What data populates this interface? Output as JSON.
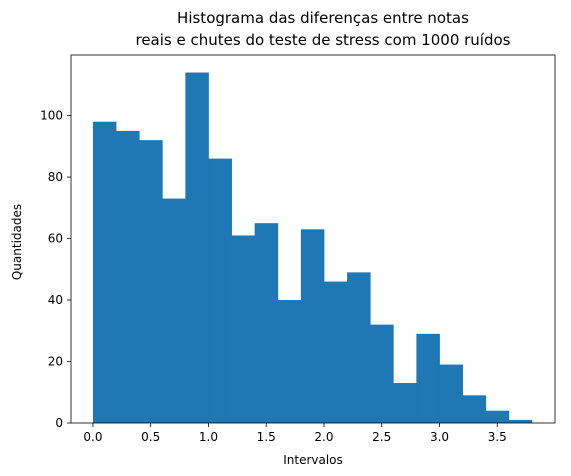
{
  "chart_data": {
    "type": "bar",
    "title_lines": [
      "Histograma das diferenças entre notas",
      "reais e chutes  do teste de stress com 1000 ruídos"
    ],
    "xlabel": "Intervalos",
    "ylabel": "Quantidades",
    "bar_color": "#1f77b4",
    "xlim": [
      -0.19,
      4.0
    ],
    "ylim": [
      0,
      119.7
    ],
    "x_ticks": [
      "0.0",
      "0.5",
      "1.0",
      "1.5",
      "2.0",
      "2.5",
      "3.0",
      "3.5"
    ],
    "y_ticks": [
      "0",
      "20",
      "40",
      "60",
      "80",
      "100"
    ],
    "bin_edges": [
      0.0,
      0.2,
      0.4,
      0.6,
      0.8,
      1.0,
      1.2,
      1.4,
      1.6,
      1.8,
      2.0,
      2.2,
      2.4,
      2.6,
      2.8,
      3.0,
      3.2,
      3.4,
      3.6,
      3.8
    ],
    "values": [
      98,
      95,
      92,
      73,
      114,
      86,
      61,
      65,
      40,
      63,
      46,
      49,
      32,
      13,
      29,
      19,
      9,
      4,
      1
    ],
    "grid": false,
    "legend": "none"
  }
}
